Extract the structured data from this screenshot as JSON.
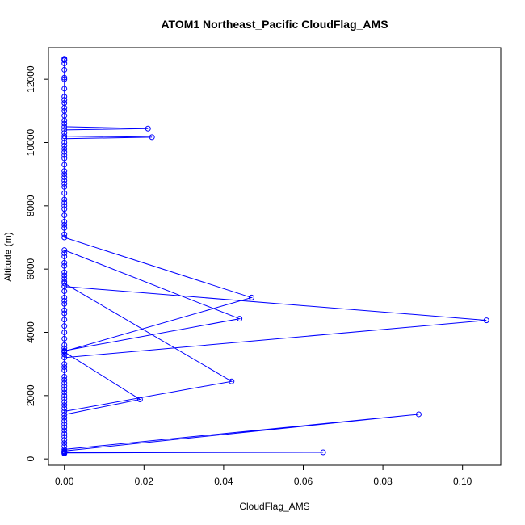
{
  "chart_data": {
    "type": "line",
    "title": "ATOM1 Northeast_Pacific CloudFlag_AMS",
    "xlabel": "CloudFlag_AMS",
    "ylabel": "Altitude (m)",
    "xlim": [
      -0.004,
      0.1096
    ],
    "ylim": [
      -200,
      13000
    ],
    "x_ticks": [
      0.0,
      0.02,
      0.04,
      0.06,
      0.08,
      0.1
    ],
    "x_tick_labels": [
      "0.00",
      "0.02",
      "0.04",
      "0.06",
      "0.08",
      "0.10"
    ],
    "y_ticks": [
      0,
      2000,
      4000,
      6000,
      8000,
      10000,
      12000
    ],
    "y_tick_labels": [
      "0",
      "2000",
      "4000",
      "6000",
      "8000",
      "10000",
      "12000"
    ],
    "grid": false,
    "series": [
      {
        "color": "#0000ff",
        "marker": "open-circle",
        "points": [
          [
            0,
            12650
          ],
          [
            0,
            12620
          ],
          [
            0,
            12600
          ],
          [
            0,
            12500
          ],
          [
            0,
            12300
          ],
          [
            0,
            12050
          ],
          [
            0,
            12000
          ],
          [
            0,
            11700
          ],
          [
            0,
            11450
          ],
          [
            0,
            11350
          ],
          [
            0,
            11250
          ],
          [
            0,
            11100
          ],
          [
            0,
            11000
          ],
          [
            0,
            10850
          ],
          [
            0,
            10700
          ],
          [
            0,
            10600
          ],
          [
            0,
            10500
          ],
          [
            0.021,
            10440
          ],
          [
            0,
            10400
          ],
          [
            0,
            10300
          ],
          [
            0,
            10200
          ],
          [
            0.022,
            10170
          ],
          [
            0,
            10120
          ],
          [
            0,
            10000
          ],
          [
            0,
            9900
          ],
          [
            0,
            9800
          ],
          [
            0,
            9700
          ],
          [
            0,
            9600
          ],
          [
            0,
            9500
          ],
          [
            0,
            9300
          ],
          [
            0,
            9100
          ],
          [
            0,
            9000
          ],
          [
            0,
            8900
          ],
          [
            0,
            8800
          ],
          [
            0,
            8700
          ],
          [
            0,
            8600
          ],
          [
            0,
            8400
          ],
          [
            0,
            8200
          ],
          [
            0,
            8100
          ],
          [
            0,
            8000
          ],
          [
            0,
            7900
          ],
          [
            0,
            7700
          ],
          [
            0,
            7500
          ],
          [
            0,
            7400
          ],
          [
            0,
            7300
          ],
          [
            0,
            7100
          ],
          [
            0,
            7000
          ],
          [
            0.047,
            5100
          ],
          [
            0,
            3400
          ],
          [
            0,
            3300
          ],
          [
            0,
            3200
          ],
          [
            0.106,
            4380
          ],
          [
            0,
            5450
          ],
          [
            0,
            5300
          ],
          [
            0,
            5100
          ],
          [
            0,
            5000
          ],
          [
            0,
            4900
          ],
          [
            0,
            4700
          ],
          [
            0,
            4600
          ],
          [
            0,
            4400
          ],
          [
            0,
            4200
          ],
          [
            0,
            4000
          ],
          [
            0,
            3800
          ],
          [
            0,
            3600
          ],
          [
            0,
            3500
          ],
          [
            0,
            3420
          ],
          [
            0.044,
            4430
          ],
          [
            0,
            6600
          ],
          [
            0,
            6500
          ],
          [
            0,
            6400
          ],
          [
            0,
            6200
          ],
          [
            0,
            6100
          ],
          [
            0,
            5900
          ],
          [
            0,
            5800
          ],
          [
            0,
            5700
          ],
          [
            0,
            5600
          ],
          [
            0,
            5550
          ],
          [
            0.042,
            2450
          ],
          [
            0,
            1500
          ],
          [
            0,
            1400
          ],
          [
            0.019,
            1880
          ],
          [
            0,
            3380
          ],
          [
            0,
            3000
          ],
          [
            0,
            2900
          ],
          [
            0,
            2800
          ],
          [
            0,
            2600
          ],
          [
            0,
            2500
          ],
          [
            0,
            2400
          ],
          [
            0,
            2300
          ],
          [
            0,
            2200
          ],
          [
            0,
            2100
          ],
          [
            0,
            2000
          ],
          [
            0,
            1900
          ],
          [
            0,
            1800
          ],
          [
            0,
            1700
          ],
          [
            0,
            1600
          ],
          [
            0,
            1300
          ],
          [
            0,
            1200
          ],
          [
            0,
            1100
          ],
          [
            0,
            1000
          ],
          [
            0,
            900
          ],
          [
            0,
            800
          ],
          [
            0,
            700
          ],
          [
            0,
            600
          ],
          [
            0,
            500
          ],
          [
            0,
            400
          ],
          [
            0,
            300
          ],
          [
            0.089,
            1410
          ],
          [
            0,
            250
          ],
          [
            0,
            230
          ],
          [
            0,
            210
          ],
          [
            0.065,
            210
          ],
          [
            0,
            190
          ],
          [
            0,
            170
          ]
        ]
      }
    ]
  }
}
